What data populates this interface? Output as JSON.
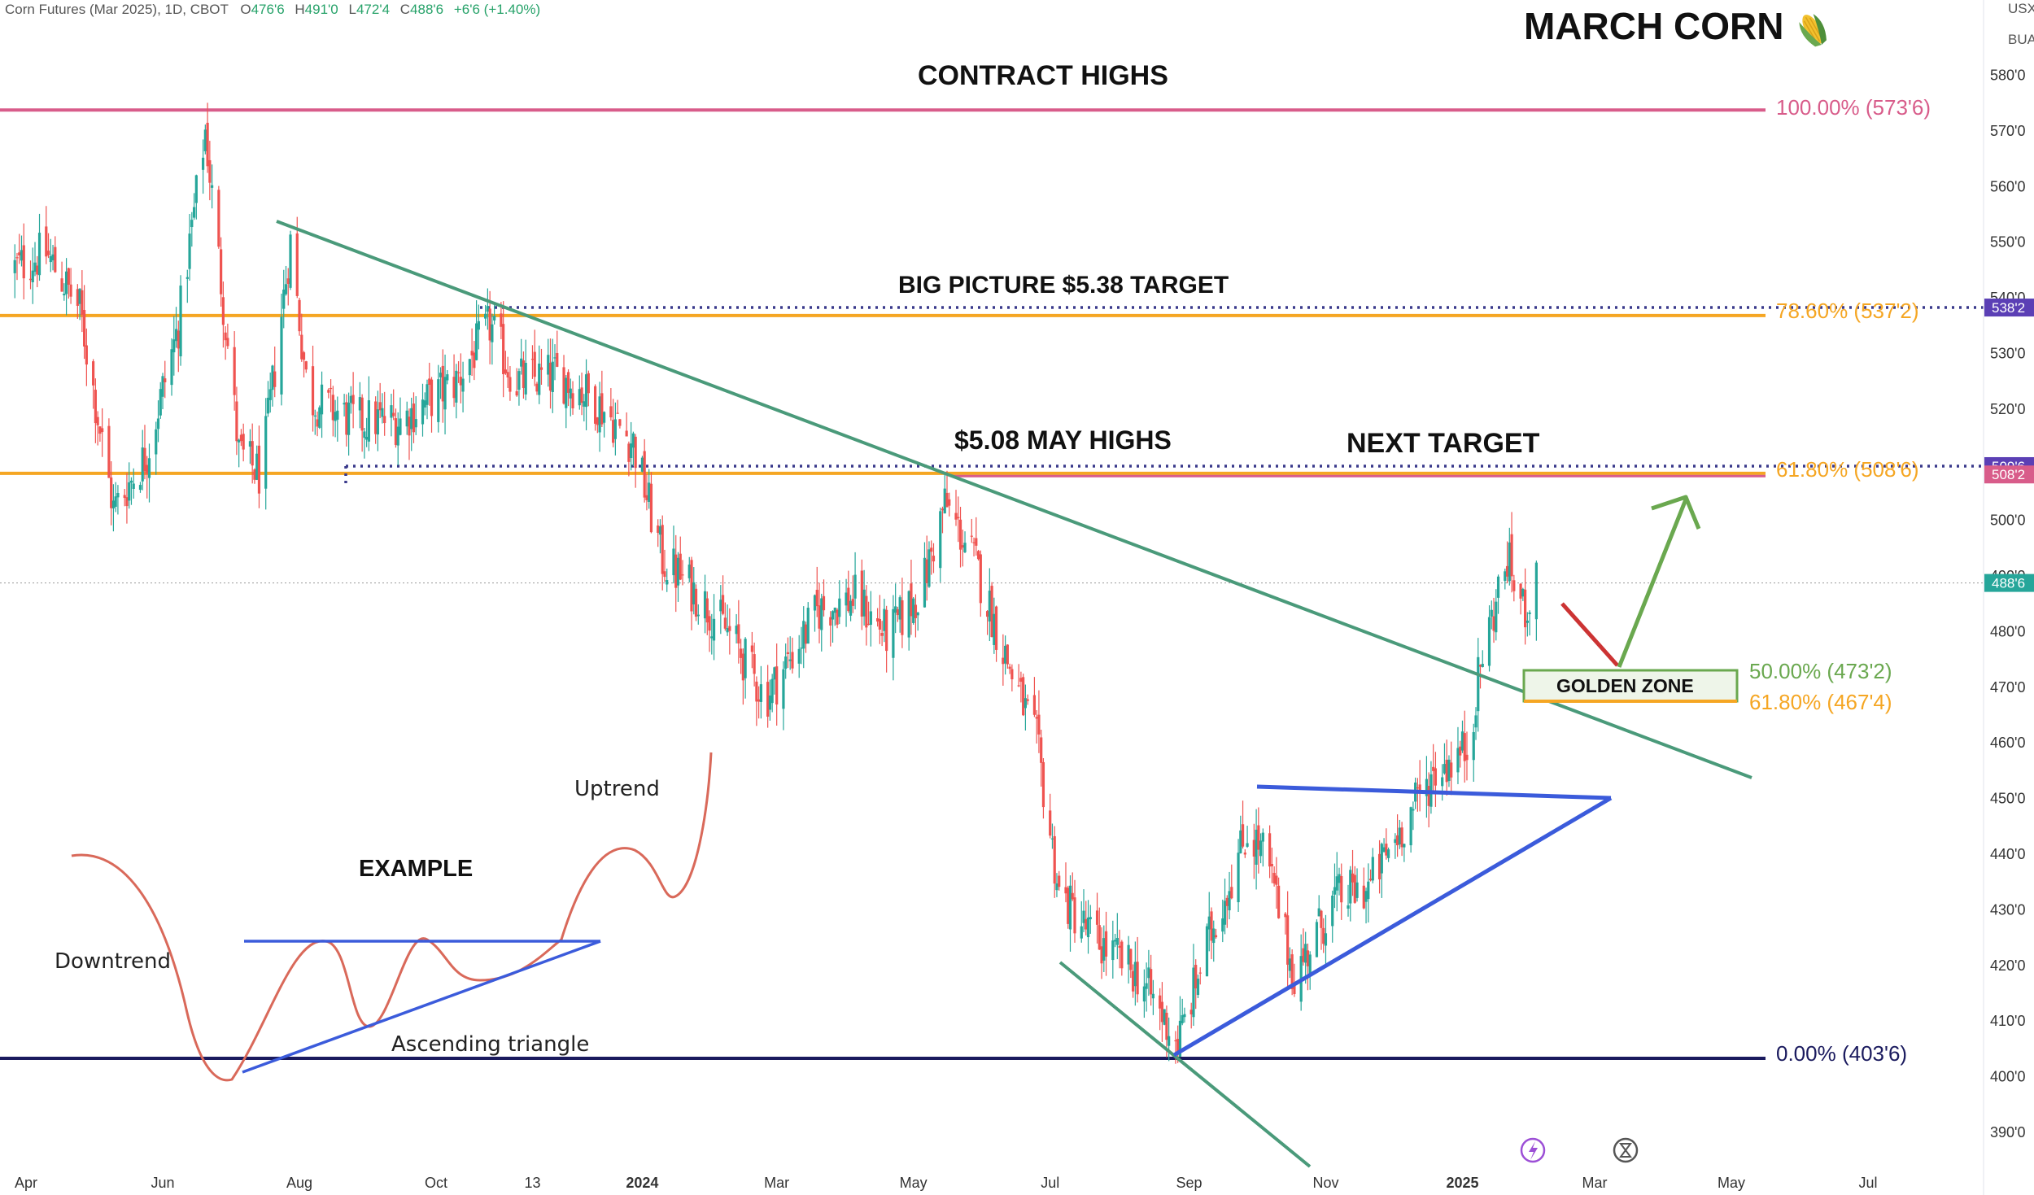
{
  "header": {
    "symbol": "Corn Futures (Mar 2025), 1D, CBOT",
    "o_label": "O",
    "o_val": "476'6",
    "h_label": "H",
    "h_val": "491'0",
    "l_label": "L",
    "l_val": "472'4",
    "c_label": "C",
    "c_val": "488'6",
    "change": "+6'6 (+1.40%)",
    "currency": "USX",
    "unit": "BUA"
  },
  "icons": {
    "corn": "corn-emoji-icon",
    "flash": "lightning-icon",
    "replay": "hourglass-icon"
  },
  "colors": {
    "up": "#26a69a",
    "down": "#ef5350",
    "orange": "#f5a623",
    "pink": "#d85c8a",
    "navy": "#1a1a5e",
    "green_line": "#4a9a7a",
    "blue_line": "#3b5bdb",
    "arrow_green": "#6aa84f",
    "arrow_red": "#cc3333",
    "dotted": "#3a3a8c"
  },
  "chart_data": {
    "type": "candlestick",
    "title": "MARCH CORN",
    "ylim": [
      385,
      585
    ],
    "y_ticks": [
      "390'0",
      "400'0",
      "410'0",
      "420'0",
      "430'0",
      "440'0",
      "450'0",
      "460'0",
      "470'0",
      "480'0",
      "490'0",
      "500'0",
      "510'0",
      "520'0",
      "530'0",
      "540'0",
      "550'0",
      "560'0",
      "570'0",
      "580'0"
    ],
    "y_tick_values": [
      390,
      400,
      410,
      420,
      430,
      440,
      450,
      460,
      470,
      480,
      490,
      500,
      510,
      520,
      530,
      540,
      550,
      560,
      570,
      580
    ],
    "x_ticks": [
      "Apr",
      "Jun",
      "Aug",
      "Oct",
      "13",
      "2024",
      "Mar",
      "May",
      "Jul",
      "Sep",
      "Nov",
      "2025",
      "Mar",
      "May",
      "Jul"
    ],
    "x_tick_dates": [
      "2023-04-01",
      "2023-06-01",
      "2023-08-01",
      "2023-10-01",
      "2023-11-13",
      "2024-01-01",
      "2024-03-01",
      "2024-05-01",
      "2024-07-01",
      "2024-09-01",
      "2024-11-01",
      "2025-01-01",
      "2025-03-01",
      "2025-05-01",
      "2025-07-01"
    ],
    "price_keys": [
      [
        "2023-03-25",
        545
      ],
      [
        "2023-04-10",
        548
      ],
      [
        "2023-04-25",
        538
      ],
      [
        "2023-05-10",
        502
      ],
      [
        "2023-05-25",
        512
      ],
      [
        "2023-06-08",
        535
      ],
      [
        "2023-06-20",
        570
      ],
      [
        "2023-07-05",
        512
      ],
      [
        "2023-07-15",
        508
      ],
      [
        "2023-07-28",
        550
      ],
      [
        "2023-08-05",
        522
      ],
      [
        "2023-08-25",
        518
      ],
      [
        "2023-09-15",
        518
      ],
      [
        "2023-10-10",
        525
      ],
      [
        "2023-10-25",
        535
      ],
      [
        "2023-11-05",
        525
      ],
      [
        "2023-11-25",
        526
      ],
      [
        "2023-12-10",
        522
      ],
      [
        "2023-12-28",
        514
      ],
      [
        "2024-01-10",
        493
      ],
      [
        "2024-01-25",
        487
      ],
      [
        "2024-02-10",
        479
      ],
      [
        "2024-02-25",
        468
      ],
      [
        "2024-03-05",
        474
      ],
      [
        "2024-03-20",
        484
      ],
      [
        "2024-04-05",
        486
      ],
      [
        "2024-04-20",
        479
      ],
      [
        "2024-05-05",
        488
      ],
      [
        "2024-05-15",
        503
      ],
      [
        "2024-05-28",
        493
      ],
      [
        "2024-06-10",
        477
      ],
      [
        "2024-06-25",
        460
      ],
      [
        "2024-07-05",
        433
      ],
      [
        "2024-07-20",
        425
      ],
      [
        "2024-08-10",
        418
      ],
      [
        "2024-08-27",
        406
      ],
      [
        "2024-09-10",
        425
      ],
      [
        "2024-09-27",
        444
      ],
      [
        "2024-10-05",
        440
      ],
      [
        "2024-10-18",
        418
      ],
      [
        "2024-11-05",
        432
      ],
      [
        "2024-11-20",
        434
      ],
      [
        "2024-12-05",
        445
      ],
      [
        "2024-12-20",
        455
      ],
      [
        "2025-01-03",
        459
      ],
      [
        "2025-01-10",
        476
      ],
      [
        "2025-01-21",
        493
      ],
      [
        "2025-01-28",
        484
      ],
      [
        "2025-02-03",
        488
      ]
    ],
    "last_price": "488'6",
    "last_price_value": 488.75,
    "price_tags": [
      {
        "text": "538'2",
        "value": 538.25,
        "color": "#5b3fb5"
      },
      {
        "text": "509'6",
        "value": 509.75,
        "color": "#5b3fb5"
      },
      {
        "text": "508'2",
        "value": 508.25,
        "color": "#d85c8a"
      },
      {
        "text": "488'6",
        "value": 488.75,
        "color": "#26a69a"
      }
    ],
    "fib_levels": [
      {
        "label": "100.00% (573'6)",
        "value": 573.75,
        "color": "#d85c8a"
      },
      {
        "label": "78.60% (537'2)",
        "value": 537.25,
        "color": "#f5a623"
      },
      {
        "label": "61.80% (508'6)",
        "value": 508.75,
        "color": "#f5a623"
      },
      {
        "label": "0.00% (403'6)",
        "value": 403.75,
        "color": "#1a1a5e"
      }
    ],
    "golden_zone_levels": [
      {
        "label": "50.00% (473'2)",
        "value": 473.25,
        "color": "#6aa84f"
      },
      {
        "label": "61.80% (467'4)",
        "value": 467.5,
        "color": "#f5a623"
      }
    ],
    "annotations": {
      "contract_highs": "CONTRACT HIGHS",
      "big_picture": "BIG PICTURE $5.38 TARGET",
      "may_highs": "$5.08 MAY HIGHS",
      "next_target": "NEXT TARGET",
      "golden_zone": "GOLDEN ZONE",
      "example": "EXAMPLE",
      "uptrend": "Uptrend",
      "downtrend": "Downtrend",
      "ascending_triangle": "Ascending triangle"
    }
  }
}
